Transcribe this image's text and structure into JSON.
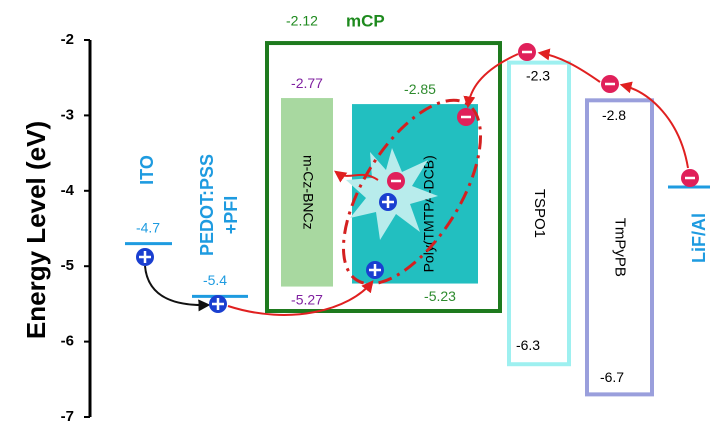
{
  "axis": {
    "label": "Energy Level (eV)",
    "ylim": [
      -7,
      -2
    ],
    "yticks": [
      -2,
      -3,
      -4,
      -5,
      -6,
      -7
    ]
  },
  "electrodes": [
    {
      "name": "ITO",
      "level": -4.7
    },
    {
      "name": "PEDOT:PSS",
      "name2": "+PFI",
      "level": -5.4
    },
    {
      "name": "LiF/Al"
    }
  ],
  "host": {
    "level": -2.12,
    "name": "mCP"
  },
  "layers": [
    {
      "name": "m-Cz-BNCz",
      "lumo": -2.77,
      "homo": -5.27
    },
    {
      "name": "Poly(TMTPA-DCB)",
      "lumo": -2.85,
      "homo": -5.23
    },
    {
      "name": "TSPO1",
      "lumo": -2.3,
      "homo": -6.3
    },
    {
      "name": "TmPyPB",
      "lumo": -2.8,
      "homo": -6.7
    }
  ]
}
